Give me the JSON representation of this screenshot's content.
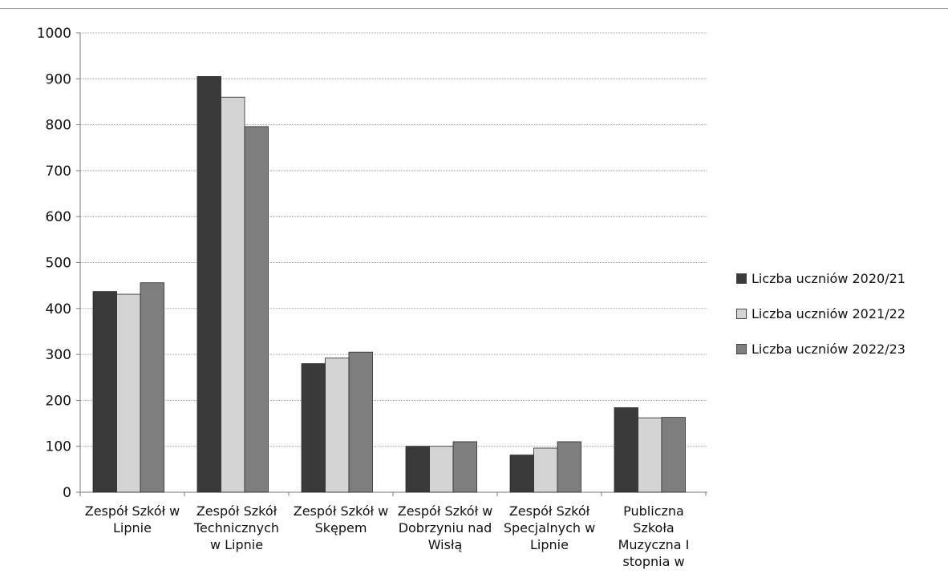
{
  "chart_data": {
    "type": "bar",
    "categories": [
      [
        "Zespół Szkół w",
        "Lipnie"
      ],
      [
        "Zespół Szkół",
        "Technicznych",
        "w Lipnie"
      ],
      [
        "Zespół Szkół w",
        "Skępem"
      ],
      [
        "Zespół Szkół w",
        "Dobrzyniu nad",
        "Wisłą"
      ],
      [
        "Zespół Szkół",
        "Specjalnych w",
        "Lipnie"
      ],
      [
        "Publiczna",
        "Szkoła",
        "Muzyczna I",
        "stopnia w"
      ]
    ],
    "series": [
      {
        "name": "Liczba uczniów 2020/21",
        "color": "#3a3a3a",
        "values": [
          437,
          905,
          280,
          100,
          81,
          184
        ]
      },
      {
        "name": "Liczba uczniów 2021/22",
        "color": "#d4d4d4",
        "values": [
          431,
          860,
          292,
          100,
          96,
          162
        ]
      },
      {
        "name": "Liczba uczniów 2022/23",
        "color": "#7e7e7e",
        "values": [
          456,
          796,
          305,
          110,
          110,
          163
        ]
      }
    ],
    "y_ticks": [
      "0",
      "100",
      "200",
      "300",
      "400",
      "500",
      "600",
      "700",
      "800",
      "900",
      "1000"
    ],
    "ylim": [
      0,
      1000
    ],
    "grid": true,
    "legend_position": "right"
  }
}
